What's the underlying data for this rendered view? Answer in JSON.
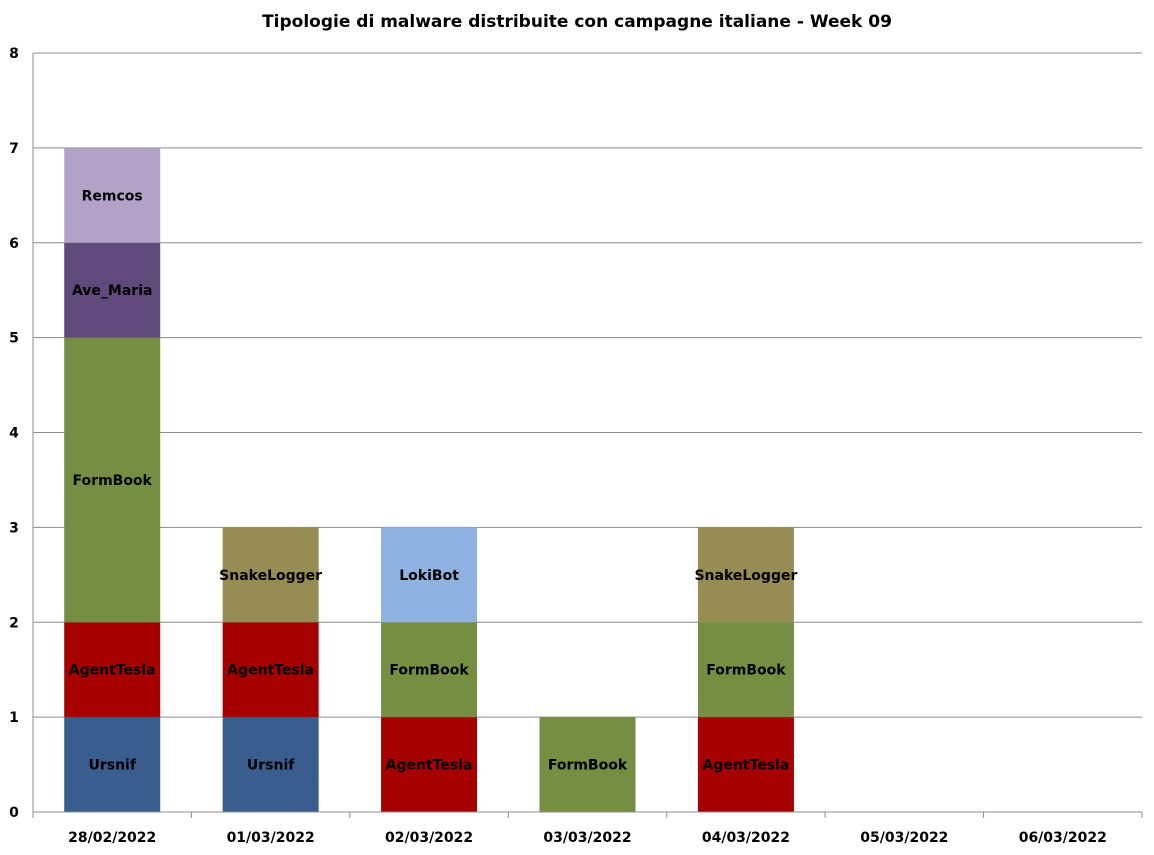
{
  "chart_data": {
    "type": "bar",
    "stacked": true,
    "title": "Tipologie di malware distribuite con campagne italiane - Week 09",
    "xlabel": "",
    "ylabel": "",
    "ylim": [
      0,
      8
    ],
    "yticks": [
      "0",
      "1",
      "2",
      "3",
      "4",
      "5",
      "6",
      "7",
      "8"
    ],
    "grid": true,
    "categories": [
      "28/02/2022",
      "01/03/2022",
      "02/03/2022",
      "03/03/2022",
      "04/03/2022",
      "05/03/2022",
      "06/03/2022"
    ],
    "colors": {
      "Ursnif": "#3a5d8f",
      "AgentTesla": "#a60000",
      "FormBook": "#758e42",
      "Ave_Maria": "#5f4a7b",
      "Remcos": "#b3a2c8",
      "SnakeLogger": "#968c54",
      "LokiBot": "#8eb3e1"
    },
    "stacks": [
      [
        {
          "label": "Ursnif",
          "value": 1
        },
        {
          "label": "AgentTesla",
          "value": 1
        },
        {
          "label": "FormBook",
          "value": 3
        },
        {
          "label": "Ave_Maria",
          "value": 1
        },
        {
          "label": "Remcos",
          "value": 1
        }
      ],
      [
        {
          "label": "Ursnif",
          "value": 1
        },
        {
          "label": "AgentTesla",
          "value": 1
        },
        {
          "label": "SnakeLogger",
          "value": 1
        }
      ],
      [
        {
          "label": "AgentTesla",
          "value": 1
        },
        {
          "label": "FormBook",
          "value": 1
        },
        {
          "label": "LokiBot",
          "value": 1
        }
      ],
      [
        {
          "label": "FormBook",
          "value": 1
        }
      ],
      [
        {
          "label": "AgentTesla",
          "value": 1
        },
        {
          "label": "FormBook",
          "value": 1
        },
        {
          "label": "SnakeLogger",
          "value": 1
        }
      ],
      [],
      []
    ]
  }
}
